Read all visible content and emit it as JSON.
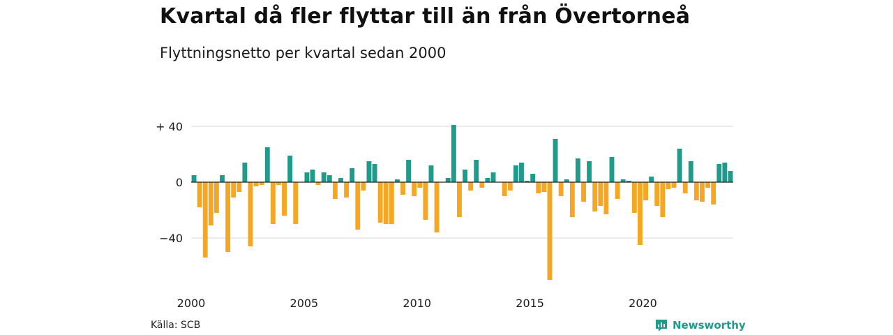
{
  "title": "Kvartal då fler flyttar till än från Övertorneå",
  "subtitle": "Flyttningsnetto per kvartal sedan 2000",
  "source": "Källa: SCB",
  "brand": {
    "name": "Newsworthy",
    "icon": "newsworthy-logo-icon"
  },
  "colors": {
    "positive": "#1e9b8a",
    "negative": "#f5a623",
    "grid": "#d9d9d9",
    "axis": "#222222"
  },
  "chart_data": {
    "type": "bar",
    "title": "Kvartal då fler flyttar till än från Övertorneå",
    "subtitle": "Flyttningsnetto per kvartal sedan 2000",
    "ylim": [
      -70,
      42
    ],
    "yticks": [
      40,
      0,
      -40
    ],
    "ytick_labels": [
      "+ 40",
      "0",
      "−40"
    ],
    "xticks": [
      "2000",
      "2005",
      "2010",
      "2015",
      "2020"
    ],
    "grid": true,
    "start": "2000 Q1",
    "values": [
      5,
      -18,
      -54,
      -31,
      -22,
      5,
      -50,
      -11,
      -7,
      14,
      -46,
      -3,
      -2,
      25,
      -30,
      -2,
      -24,
      19,
      -30,
      0,
      7,
      9,
      -2,
      7,
      5,
      -12,
      3,
      -11,
      10,
      -34,
      -6,
      15,
      13,
      -29,
      -30,
      -30,
      2,
      -9,
      16,
      -10,
      -4,
      -27,
      12,
      -36,
      0,
      3,
      41,
      -25,
      9,
      -6,
      16,
      -4,
      3,
      7,
      0,
      -10,
      -6,
      12,
      14,
      1,
      6,
      -8,
      -7,
      -70,
      31,
      -10,
      2,
      -25,
      17,
      -14,
      15,
      -21,
      -17,
      -23,
      18,
      -12,
      2,
      1,
      -22,
      -45,
      -13,
      4,
      -17,
      -25,
      -5,
      -4,
      24,
      -8,
      15,
      -13,
      -14,
      -4,
      -16,
      13,
      14,
      8
    ]
  }
}
